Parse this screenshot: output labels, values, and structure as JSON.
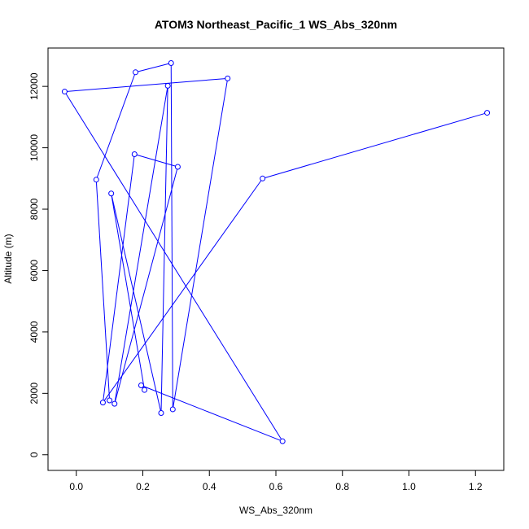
{
  "chart_data": {
    "type": "line",
    "title": "ATOM3 Northeast_Pacific_1 WS_Abs_320nm",
    "xlabel": "WS_Abs_320nm",
    "ylabel": "Altitude (m)",
    "xlim": [
      -0.085,
      1.285
    ],
    "ylim": [
      -510,
      13250
    ],
    "xticks": [
      0.0,
      0.2,
      0.4,
      0.6,
      0.8,
      1.0,
      1.2
    ],
    "xtick_labels": [
      "0.0",
      "0.2",
      "0.4",
      "0.6",
      "0.8",
      "1.0",
      "1.2"
    ],
    "yticks": [
      0,
      2000,
      4000,
      6000,
      8000,
      10000,
      12000
    ],
    "ytick_labels": [
      "0",
      "2000",
      "4000",
      "6000",
      "8000",
      "10000",
      "12000"
    ],
    "grid": false,
    "line_color": "#0000ff",
    "marker": "open-circle",
    "series": [
      {
        "points": [
          {
            "x": 1.235,
            "y": 11140
          },
          {
            "x": 0.56,
            "y": 9000
          },
          {
            "x": 0.08,
            "y": 1700
          },
          {
            "x": 0.175,
            "y": 9790
          },
          {
            "x": 0.305,
            "y": 9380
          },
          {
            "x": 0.115,
            "y": 1660
          },
          {
            "x": 0.275,
            "y": 12020
          },
          {
            "x": 0.255,
            "y": 1360
          },
          {
            "x": 0.105,
            "y": 8510
          },
          {
            "x": 0.205,
            "y": 2110
          },
          {
            "x": 0.195,
            "y": 2260
          },
          {
            "x": 0.62,
            "y": 440
          },
          {
            "x": -0.035,
            "y": 11830
          },
          {
            "x": 0.455,
            "y": 12260
          },
          {
            "x": 0.29,
            "y": 1480
          },
          {
            "x": 0.285,
            "y": 12760
          },
          {
            "x": 0.178,
            "y": 12460
          },
          {
            "x": 0.06,
            "y": 8960
          },
          {
            "x": 0.1,
            "y": 1770
          }
        ]
      }
    ]
  }
}
